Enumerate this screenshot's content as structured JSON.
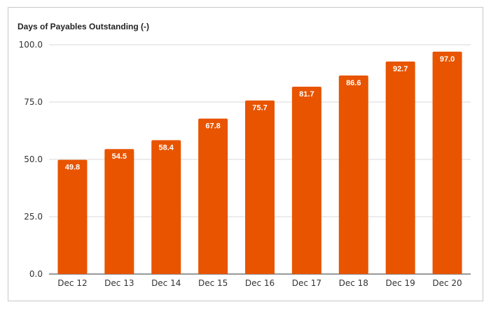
{
  "chart_data": {
    "type": "bar",
    "title": "Days of Payables Outstanding (-)",
    "xlabel": "",
    "ylabel": "",
    "categories": [
      "Dec 12",
      "Dec 13",
      "Dec 14",
      "Dec 15",
      "Dec 16",
      "Dec 17",
      "Dec 18",
      "Dec 19",
      "Dec 20"
    ],
    "values": [
      49.8,
      54.5,
      58.4,
      67.8,
      75.7,
      81.7,
      86.6,
      92.7,
      97.0
    ],
    "value_labels": [
      "49.8",
      "54.5",
      "58.4",
      "67.8",
      "75.7",
      "81.7",
      "86.6",
      "92.7",
      "97.0"
    ],
    "ylim": [
      0,
      100
    ],
    "yticks": [
      0,
      25,
      50,
      75,
      100
    ],
    "ytick_labels": [
      "0.0",
      "25.0",
      "50.0",
      "75.0",
      "100.0"
    ],
    "grid": true,
    "legend": "none",
    "bar_color": "#E85400"
  }
}
